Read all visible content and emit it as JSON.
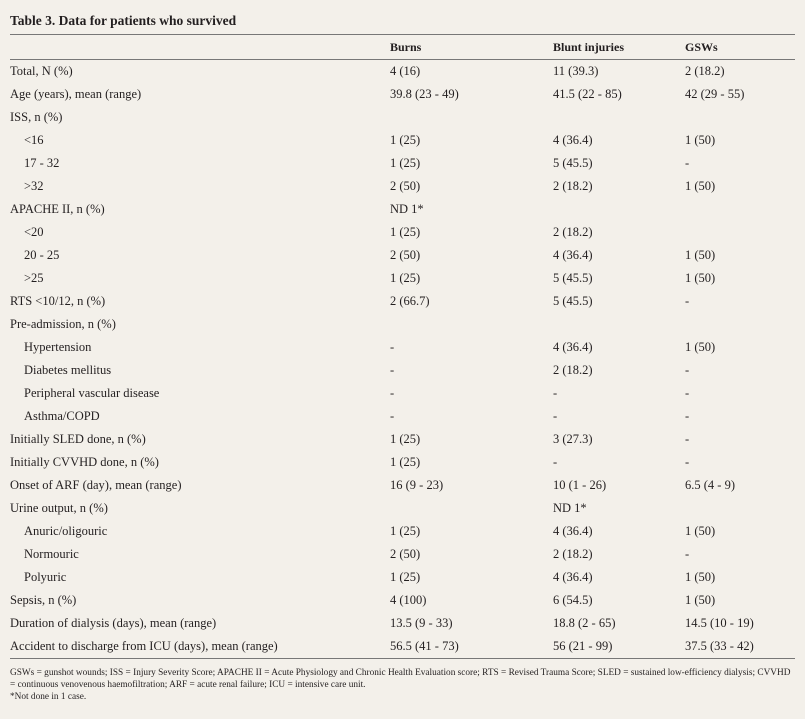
{
  "title": "Table 3. Data for patients who survived",
  "table": {
    "header": [
      null,
      "Burns",
      "Blunt injuries",
      "GSWs"
    ],
    "rows": [
      {
        "cells": [
          "Total, N (%)",
          "4 (16)",
          "11 (39.3)",
          "2 (18.2)"
        ]
      },
      {
        "cells": [
          "Age (years), mean (range)",
          "39.8 (23 - 49)",
          "41.5 (22 - 85)",
          "42 (29 - 55)"
        ]
      },
      {
        "cells": [
          "ISS, n (%)",
          null,
          null,
          null
        ],
        "rows": [
          {
            "cells": [
              "<16",
              "1 (25)",
              "4 (36.4)",
              "1 (50)"
            ]
          },
          {
            "cells": [
              "17 - 32",
              "1 (25)",
              "5 (45.5)",
              "-"
            ]
          },
          {
            "cells": [
              ">32",
              "2 (50)",
              "2 (18.2)",
              "1 (50)"
            ]
          }
        ]
      },
      {
        "cells": [
          "APACHE II, n (%)",
          "ND 1*",
          null,
          null
        ],
        "rows": [
          {
            "cells": [
              "<20",
              "1 (25)",
              "2 (18.2)",
              null
            ]
          },
          {
            "cells": [
              "20 - 25",
              "2 (50)",
              "4 (36.4)",
              "1 (50)"
            ]
          },
          {
            "cells": [
              ">25",
              "1 (25)",
              "5 (45.5)",
              "1 (50)"
            ]
          }
        ]
      },
      {
        "cells": [
          "RTS <10/12, n (%)",
          "2 (66.7)",
          "5 (45.5)",
          "-"
        ]
      },
      {
        "cells": [
          "Pre-admission, n (%)",
          null,
          null,
          null
        ],
        "rows": [
          {
            "cells": [
              "Hypertension",
              "-",
              "4 (36.4)",
              "1 (50)"
            ]
          },
          {
            "cells": [
              "Diabetes mellitus",
              "-",
              "2 (18.2)",
              "-"
            ]
          },
          {
            "cells": [
              "Peripheral vascular disease",
              "-",
              "-",
              "-"
            ]
          },
          {
            "cells": [
              "Asthma/COPD",
              "-",
              "-",
              "-"
            ]
          }
        ]
      },
      {
        "cells": [
          "Initially SLED done, n (%)",
          "1 (25)",
          "3 (27.3)",
          "-"
        ]
      },
      {
        "cells": [
          "Initially CVVHD done, n (%)",
          "1 (25)",
          "-",
          "-"
        ]
      },
      {
        "cells": [
          "Onset of ARF (day), mean (range)",
          "16 (9 - 23)",
          "10 (1 - 26)",
          "6.5 (4 - 9)"
        ]
      },
      {
        "cells": [
          "Urine output, n (%)",
          null,
          "ND 1*",
          null
        ],
        "rows": [
          {
            "cells": [
              "Anuric/oligouric",
              "1 (25)",
              "4 (36.4)",
              "1 (50)"
            ]
          },
          {
            "cells": [
              "Normouric",
              "2 (50)",
              "2 (18.2)",
              "-"
            ]
          },
          {
            "cells": [
              "Polyuric",
              "1 (25)",
              "4 (36.4)",
              "1 (50)"
            ]
          }
        ]
      },
      {
        "cells": [
          "Sepsis, n (%)",
          "4 (100)",
          "6 (54.5)",
          "1 (50)"
        ]
      },
      {
        "cells": [
          "Duration of dialysis (days), mean (range)",
          "13.5 (9 - 33)",
          "18.8 (2 - 65)",
          "14.5 (10 - 19)"
        ]
      },
      {
        "cells": [
          "Accident to discharge from ICU (days), mean (range)",
          "56.5 (41 - 73)",
          "56 (21 - 99)",
          "37.5 (33 - 42)"
        ]
      }
    ]
  },
  "footnotes": [
    "GSWs = gunshot wounds; ISS = Injury Severity Score; APACHE II = Acute Physiology and Chronic Health Evaluation score; RTS = Revised Trauma Score; SLED = sustained low-efficiency dialysis; CVVHD = continuous venovenous haemofiltration; ARF = acute renal failure; ICU = intensive care unit.",
    "*Not done in 1 case."
  ]
}
